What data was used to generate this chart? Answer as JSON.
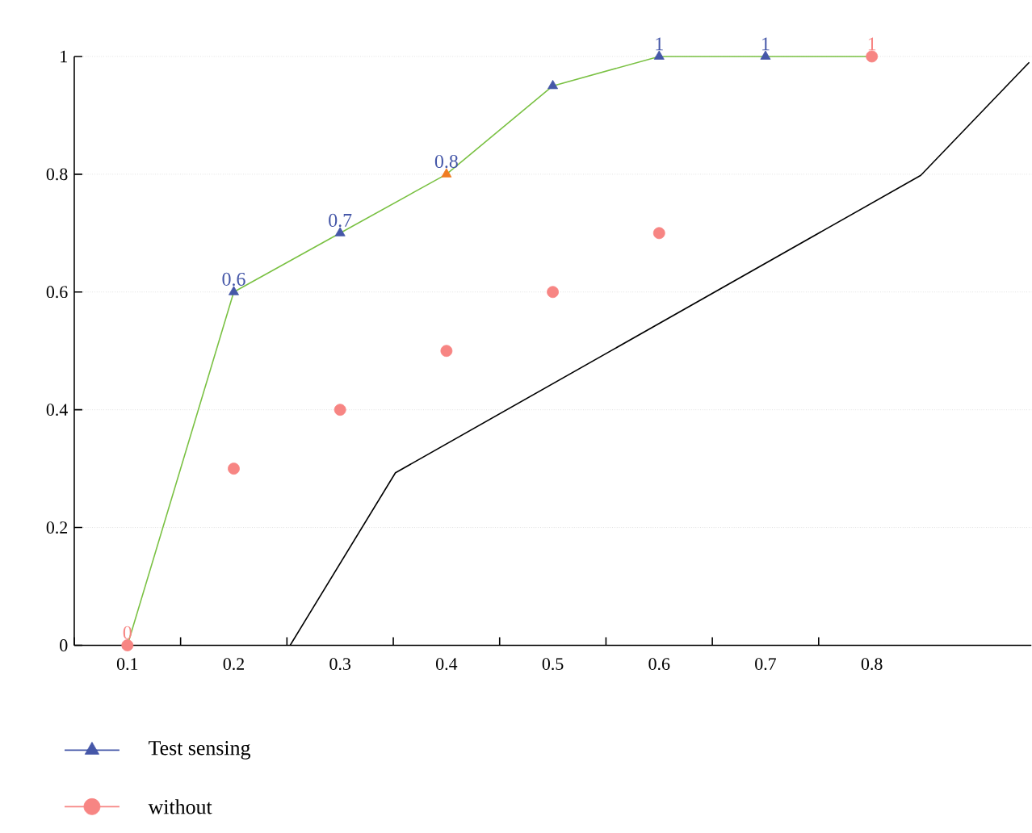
{
  "chart_data": {
    "type": "scatter",
    "x": [
      0.1,
      0.2,
      0.3,
      0.4,
      0.5,
      0.6,
      0.7,
      0.8
    ],
    "xlim": [
      0.05,
      0.95
    ],
    "xticks": [
      {
        "value": 0.05,
        "label": null
      },
      0.1,
      {
        "value": 0.15,
        "label": null
      },
      0.2,
      {
        "value": 0.25,
        "label": null
      },
      0.3,
      {
        "value": 0.35,
        "label": null
      },
      0.4,
      {
        "value": 0.45,
        "label": null
      },
      0.5,
      {
        "value": 0.55,
        "label": null
      },
      0.6,
      {
        "value": 0.65,
        "label": null
      },
      0.7,
      {
        "value": 0.75,
        "label": null
      },
      0.8
    ],
    "ylim": [
      0,
      1
    ],
    "yticks": [
      0,
      0.2,
      0.4,
      0.6,
      0.8,
      1
    ],
    "grid": "y",
    "legend": "bottom left",
    "series": [
      {
        "type": "line",
        "color": "#7ac143",
        "marker": "none",
        "values": [
          0,
          0.6,
          0.7,
          0.8,
          0.95,
          1,
          1,
          1
        ]
      },
      {
        "name": "Test sensing",
        "marker": "triangle",
        "color": "#4557a8",
        "colors": [
          "#4557a8",
          "#4557a8",
          "#4557a8",
          "#f07d22",
          "#4557a8",
          "#4557a8",
          "#4557a8",
          "#4557a8"
        ],
        "values": [
          0,
          0.6,
          0.7,
          0.8,
          0.95,
          1,
          1,
          null
        ],
        "value_labels": [
          null,
          "0.6",
          "0.7",
          "0.8",
          null,
          "1",
          "1",
          null
        ]
      },
      {
        "name": "without",
        "marker": "circle",
        "color": "#f78583",
        "values": [
          0,
          0.3,
          0.4,
          0.5,
          0.6,
          0.7,
          null,
          1
        ],
        "value_labels": [
          "0",
          null,
          null,
          null,
          null,
          null,
          null,
          "1"
        ]
      },
      {
        "type": "line",
        "color": "#000000",
        "marker": "none",
        "x": [
          0.253,
          0.352,
          0.846,
          0.948
        ],
        "values": [
          0,
          0.293,
          0.798,
          0.99
        ]
      }
    ]
  }
}
